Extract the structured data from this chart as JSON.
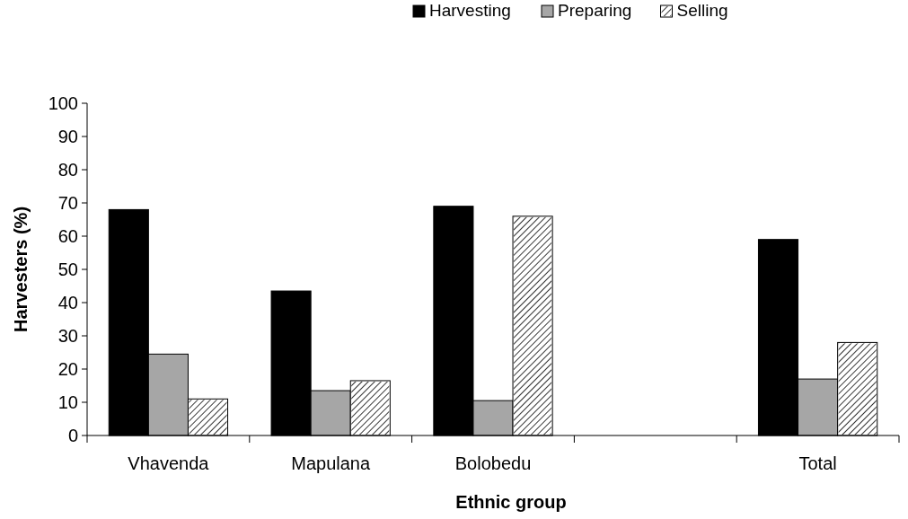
{
  "chart_data": {
    "type": "bar",
    "xlabel": "Ethnic group",
    "ylabel": "Harvesters (%)",
    "categories": [
      "Vhavenda",
      "Mapulana",
      "Bolobedu",
      null,
      "Total"
    ],
    "series": [
      {
        "name": "Harvesting",
        "color": "#000000",
        "values": [
          68,
          43.5,
          69,
          null,
          59
        ]
      },
      {
        "name": "Preparing",
        "color": "#a6a6a6",
        "values": [
          24.5,
          13.5,
          10.5,
          null,
          17
        ]
      },
      {
        "name": "Selling",
        "color": "#ffffff",
        "values": [
          11,
          16.5,
          66,
          null,
          28
        ]
      }
    ],
    "ylim": [
      0,
      100
    ],
    "yticks": [
      0,
      10,
      20,
      30,
      40,
      50,
      60,
      70,
      80,
      90,
      100
    ],
    "grid": false,
    "legend": "top"
  }
}
